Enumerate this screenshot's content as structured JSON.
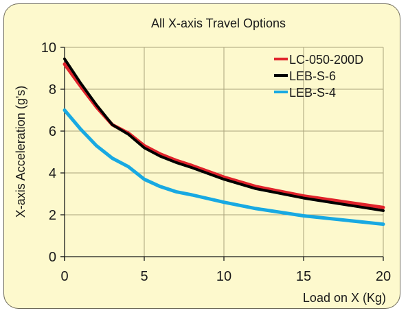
{
  "chart_data": {
    "type": "line",
    "title": "All X-axis Travel Options",
    "xlabel": "Load on X (Kg)",
    "ylabel": "X-axis Acceleration (g's)",
    "xlim": [
      0,
      20
    ],
    "ylim": [
      0,
      10
    ],
    "xticks": [
      0,
      5,
      10,
      15,
      20
    ],
    "yticks": [
      0,
      2,
      4,
      6,
      8,
      10
    ],
    "grid": true,
    "legend_position": "top-right",
    "series": [
      {
        "name": "LC-050-200D",
        "color": "#e0232b",
        "x": [
          0,
          1,
          2,
          3,
          4,
          5,
          6,
          7,
          8,
          10,
          12,
          15,
          20
        ],
        "y": [
          9.2,
          8.15,
          7.15,
          6.3,
          5.9,
          5.3,
          4.9,
          4.6,
          4.35,
          3.8,
          3.35,
          2.9,
          2.35
        ]
      },
      {
        "name": "LEB-S-6",
        "color": "#000000",
        "x": [
          0,
          1,
          2,
          3,
          4,
          5,
          6,
          7,
          8,
          10,
          12,
          15,
          20
        ],
        "y": [
          9.45,
          8.3,
          7.25,
          6.3,
          5.85,
          5.2,
          4.8,
          4.5,
          4.25,
          3.7,
          3.25,
          2.8,
          2.2
        ]
      },
      {
        "name": "LEB-S-4",
        "color": "#18a9e2",
        "x": [
          0,
          1,
          2,
          3,
          4,
          5,
          6,
          7,
          8,
          10,
          12,
          15,
          20
        ],
        "y": [
          7.0,
          6.1,
          5.3,
          4.7,
          4.3,
          3.7,
          3.35,
          3.1,
          2.95,
          2.6,
          2.3,
          1.95,
          1.55
        ]
      }
    ]
  }
}
